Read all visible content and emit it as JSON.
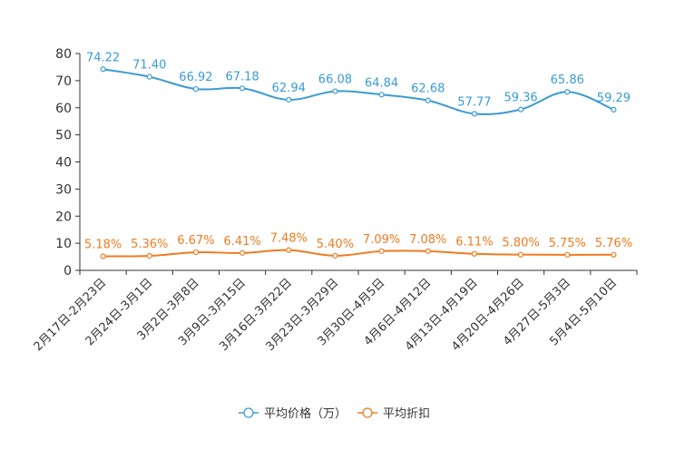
{
  "chart_data": {
    "type": "line",
    "title": "",
    "xlabel": "",
    "ylabel": "",
    "ylim": [
      0,
      80
    ],
    "yticks": [
      0,
      10,
      20,
      30,
      40,
      50,
      60,
      70,
      80
    ],
    "grid": false,
    "legend_position": "bottom-center",
    "categories": [
      "2月17日-2月23日",
      "2月24日-3月1日",
      "3月2日-3月8日",
      "3月9日-3月15日",
      "3月16日-3月22日",
      "3月23日-3月29日",
      "3月30日-4月5日",
      "4月6日-4月12日",
      "4月13日-4月19日",
      "4月20日-4月26日",
      "4月27日-5月3日",
      "5月4日-5月10日"
    ],
    "series": [
      {
        "name": "平均价格（万）",
        "color": "#3a9bd5",
        "values": [
          74.22,
          71.4,
          66.92,
          67.18,
          62.94,
          66.08,
          64.84,
          62.68,
          57.77,
          59.36,
          65.86,
          59.29
        ],
        "labels": [
          "74.22",
          "71.40",
          "66.92",
          "67.18",
          "62.94",
          "66.08",
          "64.84",
          "62.68",
          "57.77",
          "59.36",
          "65.86",
          "59.29"
        ]
      },
      {
        "name": "平均折扣",
        "color": "#f07b1f",
        "values": [
          5.18,
          5.36,
          6.67,
          6.41,
          7.48,
          5.4,
          7.09,
          7.08,
          6.11,
          5.8,
          5.75,
          5.76
        ],
        "labels": [
          "5.18%",
          "5.36%",
          "6.67%",
          "6.41%",
          "7.48%",
          "5.40%",
          "7.09%",
          "7.08%",
          "6.11%",
          "5.80%",
          "5.75%",
          "5.76%"
        ]
      }
    ]
  }
}
